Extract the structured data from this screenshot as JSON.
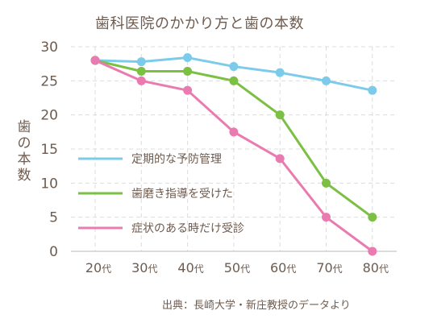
{
  "chart_data": {
    "type": "line",
    "title": "歯科医院のかかり方と歯の本数",
    "ylabel": "歯の本数",
    "xlabel": "",
    "categories": [
      "20",
      "30",
      "40",
      "50",
      "60",
      "70",
      "80"
    ],
    "x_suffix": "代",
    "ylim": [
      0,
      30
    ],
    "yticks": [
      0,
      5,
      10,
      15,
      20,
      25,
      30
    ],
    "grid": true,
    "legend_position": "center-left",
    "series": [
      {
        "name": "定期的な予防管理",
        "color": "#7dcbea",
        "values": [
          28,
          27.8,
          28.4,
          27.1,
          26.2,
          25,
          23.6
        ]
      },
      {
        "name": "歯磨き指導を受けた",
        "color": "#7bc043",
        "values": [
          28,
          26.4,
          26.4,
          25,
          20,
          10,
          5
        ]
      },
      {
        "name": "症状のある時だけ受診",
        "color": "#ea7bb0",
        "values": [
          28,
          25,
          23.6,
          17.5,
          13.6,
          5,
          0
        ]
      }
    ],
    "source": "出典：長崎大学・新庄教授のデータより"
  }
}
